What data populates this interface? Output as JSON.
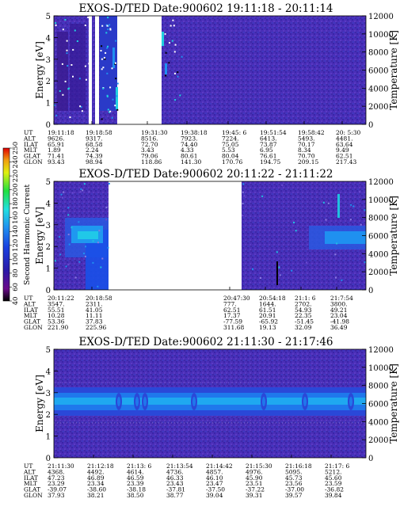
{
  "colorbar": {
    "label": "Second Harmonic Current",
    "ticks": [
      "40",
      "60",
      "80",
      "100",
      "120",
      "140",
      "160",
      "180",
      "200",
      "220",
      "240",
      "250"
    ],
    "stops": [
      "#000000",
      "#6a0a8a",
      "#2a1aa8",
      "#1a40e0",
      "#1f90f0",
      "#20e0e0",
      "#20e040",
      "#e0f010",
      "#f0a010",
      "#e00000"
    ]
  },
  "chart_data": [
    {
      "type": "heatmap",
      "title": "EXOS-D/TED   Date:900602   19:11:18 - 20:11:14",
      "ylabel": "Energy [eV]",
      "y2label": "Temperature [K]",
      "ylim": [
        0,
        5
      ],
      "y2lim": [
        0,
        12000
      ],
      "yticks": [
        "0",
        "1",
        "2",
        "3",
        "4",
        "5"
      ],
      "y2ticks": [
        "0",
        "2000",
        "4000",
        "6000",
        "8000",
        "10000",
        "12000"
      ],
      "ephemeris_labels": [
        "UT",
        "ALT",
        "ILAT",
        "MLT",
        "GLAT",
        "GLON"
      ],
      "columns": [
        {
          "UT": "19:11:18",
          "ALT": "9626.",
          "ILAT": "65.91",
          "MLT": "1.89",
          "GLAT": "71.41",
          "GLON": "93.43"
        },
        {
          "UT": "19:18:58",
          "ALT": "9317.",
          "ILAT": "68.58",
          "MLT": "2.24",
          "GLAT": "74.39",
          "GLON": "98.94"
        },
        {
          "UT": "19:31:30",
          "ALT": "8516.",
          "ILAT": "72.70",
          "MLT": "3.43",
          "GLAT": "79.06",
          "GLON": "118.86"
        },
        {
          "UT": "19:38:18",
          "ALT": "7923.",
          "ILAT": "74.40",
          "MLT": "4.33",
          "GLAT": "80.61",
          "GLON": "141.30"
        },
        {
          "UT": "19:45: 6",
          "ALT": "7224.",
          "ILAT": "75.05",
          "MLT": "5.53",
          "GLAT": "80.04",
          "GLON": "170.76"
        },
        {
          "UT": "19:51:54",
          "ALT": "6413.",
          "ILAT": "73.87",
          "MLT": "6.95",
          "GLAT": "76.61",
          "GLON": "194.75"
        },
        {
          "UT": "19:58:42",
          "ALT": "5493.",
          "ILAT": "70.17",
          "MLT": "8.34",
          "GLAT": "70.70",
          "GLON": "209.15"
        },
        {
          "UT": "20: 5:30",
          "ALT": "4481.",
          "ILAT": "63.64",
          "MLT": "9.49",
          "GLAT": "62.51",
          "GLON": "217.43"
        }
      ],
      "data_gaps_ut": [
        [
          "19:18:58",
          "19:31:30"
        ]
      ]
    },
    {
      "type": "heatmap",
      "title": "EXOS-D/TED   Date:900602   20:11:22 - 21:11:22",
      "ylabel": "Energy [eV]",
      "y2label": "Temperature [K]",
      "ylim": [
        0,
        5
      ],
      "y2lim": [
        0,
        12000
      ],
      "yticks": [
        "0",
        "1",
        "2",
        "3",
        "4",
        "5"
      ],
      "y2ticks": [
        "0",
        "2000",
        "4000",
        "6000",
        "8000",
        "10000",
        "12000"
      ],
      "ephemeris_labels": [
        "UT",
        "ALT",
        "ILAT",
        "MLT",
        "GLAT",
        "GLON"
      ],
      "columns": [
        {
          "UT": "20:11:22",
          "ALT": "3547.",
          "ILAT": "55.51",
          "MLT": "10.28",
          "GLAT": "53.36",
          "GLON": "221.90"
        },
        {
          "UT": "20:18:58",
          "ALT": "2311.",
          "ILAT": "41.05",
          "MLT": "11.11",
          "GLAT": "37.83",
          "GLON": "225.96"
        },
        {
          "UT": "20:47:30",
          "ALT": "777.",
          "ILAT": "62.51",
          "MLT": "17.37",
          "GLAT": "-77.59",
          "GLON": "311.68"
        },
        {
          "UT": "20:54:18",
          "ALT": "1644.",
          "ILAT": "61.51",
          "MLT": "20.91",
          "GLAT": "-65.92",
          "GLON": "19.13"
        },
        {
          "UT": "21:1: 6",
          "ALT": "2702.",
          "ILAT": "54.93",
          "MLT": "22.35",
          "GLAT": "-51.45",
          "GLON": "32.09"
        },
        {
          "UT": "21:7:54",
          "ALT": "3800.",
          "ILAT": "49.21",
          "MLT": "23.04",
          "GLAT": "-41.98",
          "GLON": "36.49"
        }
      ],
      "data_gaps_ut": [
        [
          "20:18:58",
          "20:47:30"
        ]
      ]
    },
    {
      "type": "heatmap",
      "title": "EXOS-D/TED   Date:900602   21:11:30 - 21:17:46",
      "ylabel": "Energy [eV]",
      "y2label": "Temperature [K]",
      "ylim": [
        0,
        5
      ],
      "y2lim": [
        0,
        12000
      ],
      "yticks": [
        "0",
        "1",
        "2",
        "3",
        "4",
        "5"
      ],
      "y2ticks": [
        "0",
        "2000",
        "4000",
        "6000",
        "8000",
        "10000",
        "12000"
      ],
      "ephemeris_labels": [
        "UT",
        "ALT",
        "ILAT",
        "MLT",
        "GLAT",
        "GLON"
      ],
      "columns": [
        {
          "UT": "21:11:30",
          "ALT": "4368.",
          "ILAT": "47.23",
          "MLT": "23.29",
          "GLAT": "-39.07",
          "GLON": "37.93"
        },
        {
          "UT": "21:12:18",
          "ALT": "4492.",
          "ILAT": "46.89",
          "MLT": "23.34",
          "GLAT": "-38.60",
          "GLON": "38.21"
        },
        {
          "UT": "21:13: 6",
          "ALT": "4614.",
          "ILAT": "46.59",
          "MLT": "23.39",
          "GLAT": "-38.18",
          "GLON": "38.50"
        },
        {
          "UT": "21:13:54",
          "ALT": "4736.",
          "ILAT": "46.33",
          "MLT": "23.43",
          "GLAT": "-37.81",
          "GLON": "38.77"
        },
        {
          "UT": "21:14:42",
          "ALT": "4857.",
          "ILAT": "46.10",
          "MLT": "23.47",
          "GLAT": "-37.50",
          "GLON": "39.04"
        },
        {
          "UT": "21:15:30",
          "ALT": "4976.",
          "ILAT": "45.90",
          "MLT": "23.51",
          "GLAT": "-37.22",
          "GLON": "39.31"
        },
        {
          "UT": "21:16:18",
          "ALT": "5095.",
          "ILAT": "45.73",
          "MLT": "23.56",
          "GLAT": "-37.00",
          "GLON": "39.57"
        },
        {
          "UT": "21:17: 6",
          "ALT": "5212.",
          "ILAT": "45.60",
          "MLT": "23.59",
          "GLAT": "-36.82",
          "GLON": "39.84"
        }
      ],
      "data_gaps_ut": []
    }
  ]
}
